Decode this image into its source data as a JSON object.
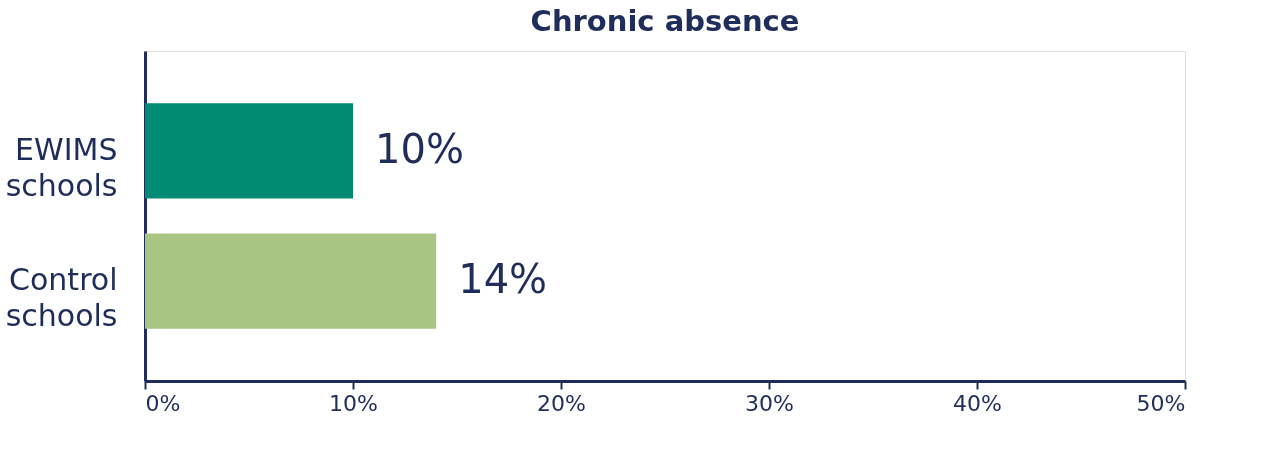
{
  "chart_data": {
    "type": "bar",
    "orientation": "horizontal",
    "title": "Chronic absence",
    "categories": [
      "EWIMS schools",
      "Control schools"
    ],
    "values": [
      10,
      14
    ],
    "colors": [
      "#008c72",
      "#a9c584"
    ],
    "value_labels": [
      "10%",
      "14%"
    ],
    "xlim": [
      0,
      50
    ],
    "xticks": [
      {
        "value": 0,
        "label": "0%"
      },
      {
        "value": 10,
        "label": "10%"
      },
      {
        "value": 20,
        "label": "20%"
      },
      {
        "value": 30,
        "label": "30%"
      },
      {
        "value": 40,
        "label": "40%"
      },
      {
        "value": 50,
        "label": "50%"
      }
    ],
    "grid": false
  }
}
